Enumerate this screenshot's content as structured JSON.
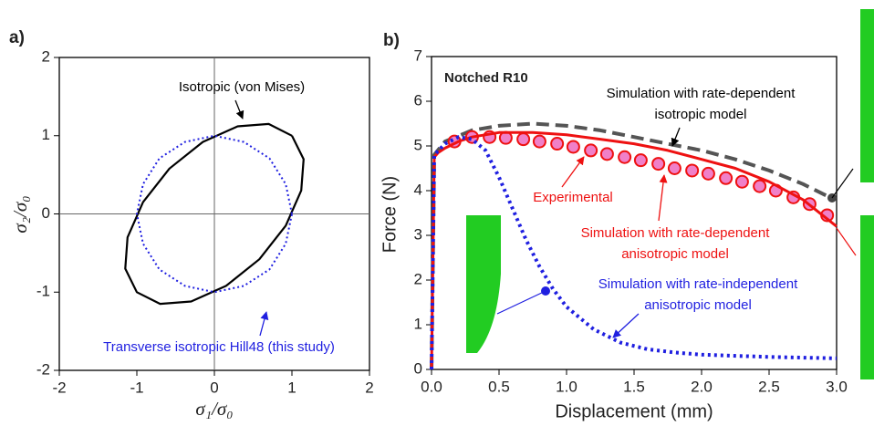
{
  "chart_data": [
    {
      "type": "line",
      "panel_label": "a)",
      "xlabel": "σ₁/σ₀",
      "ylabel": "σ₂/σ₀",
      "xlim": [
        -2,
        2
      ],
      "ylim": [
        -2,
        2
      ],
      "xticks": [
        -2,
        -1,
        0,
        1,
        2
      ],
      "yticks": [
        -2,
        -1,
        0,
        1,
        2
      ],
      "series": [
        {
          "color": "#000000",
          "linestyle": "solid",
          "x": [
            1,
            0.7,
            0.3,
            -0.15,
            -0.58,
            -0.92,
            -1.12,
            -1.15,
            -1,
            -0.7,
            -0.3,
            0.15,
            0.58,
            0.92,
            1.12,
            1.15,
            1
          ],
          "values": [
            1,
            1.15,
            1.12,
            0.92,
            0.58,
            0.15,
            -0.3,
            -0.7,
            -1,
            -1.15,
            -1.12,
            -0.92,
            -0.58,
            -0.15,
            0.3,
            0.7,
            1
          ]
        },
        {
          "color": "#1f1fe0",
          "linestyle": "dotted",
          "x": [
            1,
            0.92,
            0.71,
            0.38,
            0,
            -0.38,
            -0.71,
            -0.92,
            -1,
            -0.92,
            -0.71,
            -0.38,
            0,
            0.38,
            0.71,
            0.92,
            1
          ],
          "values": [
            0,
            0.38,
            0.71,
            0.92,
            1,
            0.92,
            0.71,
            0.38,
            0,
            -0.38,
            -0.71,
            -0.92,
            -1,
            -0.92,
            -0.71,
            -0.38,
            0
          ]
        }
      ],
      "annotations": [
        {
          "text": [
            "Isotropic (von Mises)"
          ],
          "color": "#000000"
        },
        {
          "text": [
            "Transverse isotropic Hill48 (this study)"
          ],
          "color": "#1f1fe0"
        }
      ]
    },
    {
      "type": "line",
      "panel_label": "b)",
      "title": "Notched R10",
      "xlabel": "Displacement (mm)",
      "ylabel": "Force (N)",
      "xlim": [
        0,
        3
      ],
      "ylim": [
        0,
        7
      ],
      "xticks": [
        {
          "value": 0,
          "label": "0.0"
        },
        0.5,
        {
          "value": 1,
          "label": "1.0"
        },
        1.5,
        {
          "value": 2,
          "label": "2.0"
        },
        2.5,
        {
          "value": 3,
          "label": "3.0"
        }
      ],
      "yticks": [
        0,
        1,
        2,
        3,
        4,
        5,
        6,
        7
      ],
      "series": [
        {
          "color": "#555555",
          "linestyle": "dashed",
          "x": [
            0,
            0.02,
            0.1,
            0.3,
            0.5,
            0.75,
            1,
            1.25,
            1.5,
            1.75,
            2,
            2.25,
            2.5,
            2.75,
            2.95
          ],
          "values": [
            0,
            4.8,
            5.1,
            5.35,
            5.45,
            5.5,
            5.45,
            5.35,
            5.2,
            5.05,
            4.9,
            4.7,
            4.45,
            4.15,
            3.85
          ]
        },
        {
          "color": "#ee1111",
          "linestyle": "none",
          "marker": "circle",
          "markerfacecolor": "#f080c8",
          "x": [
            0.17,
            0.3,
            0.43,
            0.55,
            0.68,
            0.8,
            0.93,
            1.05,
            1.18,
            1.3,
            1.43,
            1.55,
            1.68,
            1.8,
            1.93,
            2.05,
            2.18,
            2.3,
            2.43,
            2.55,
            2.68,
            2.8,
            2.93
          ],
          "values": [
            5.1,
            5.2,
            5.2,
            5.18,
            5.15,
            5.1,
            5.05,
            4.98,
            4.9,
            4.82,
            4.75,
            4.68,
            4.6,
            4.5,
            4.45,
            4.38,
            4.28,
            4.2,
            4.1,
            4,
            3.85,
            3.7,
            3.45
          ]
        },
        {
          "color": "#ee1111",
          "linestyle": "solid",
          "x": [
            0,
            0.02,
            0.05,
            0.1,
            0.2,
            0.3,
            0.5,
            0.75,
            1,
            1.25,
            1.5,
            1.75,
            2,
            2.25,
            2.5,
            2.75,
            3
          ],
          "values": [
            0,
            4.75,
            4.85,
            4.95,
            5.1,
            5.2,
            5.3,
            5.3,
            5.25,
            5.15,
            5.05,
            4.9,
            4.7,
            4.5,
            4.2,
            3.8,
            3.2
          ]
        },
        {
          "color": "#1f1fe0",
          "linestyle": "dotted",
          "x": [
            0,
            0.02,
            0.1,
            0.2,
            0.3,
            0.4,
            0.5,
            0.6,
            0.7,
            0.8,
            0.9,
            1,
            1.2,
            1.4,
            1.6,
            1.8,
            2,
            2.5,
            3
          ],
          "values": [
            0,
            4.8,
            5.05,
            5.2,
            5.15,
            4.9,
            4.3,
            3.6,
            2.9,
            2.3,
            1.8,
            1.4,
            0.9,
            0.6,
            0.45,
            0.38,
            0.33,
            0.28,
            0.25
          ]
        }
      ],
      "annotations": [
        {
          "text": [
            "Simulation with rate-dependent",
            "isotropic model"
          ],
          "color": "#000000"
        },
        {
          "text": [
            "Experimental"
          ],
          "color": "#ee1111"
        },
        {
          "text": [
            "Simulation with rate-dependent",
            "anisotropic model"
          ],
          "color": "#ee1111"
        },
        {
          "text": [
            "Simulation with rate-independent",
            "anisotropic model"
          ],
          "color": "#1f1fe0"
        }
      ]
    }
  ]
}
